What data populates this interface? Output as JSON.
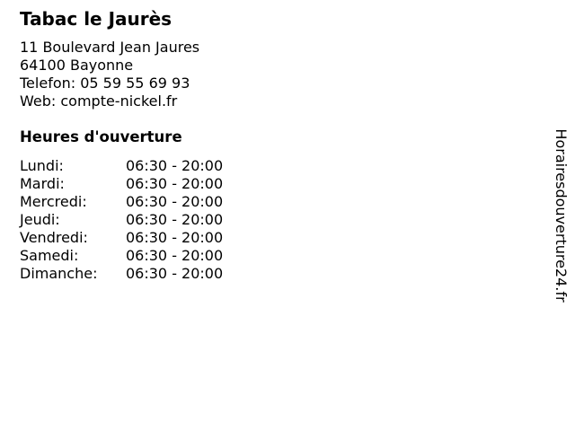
{
  "page": {
    "background_color": "#ffffff",
    "text_color": "#000000"
  },
  "business": {
    "name": "Tabac le Jaurès",
    "address_line1": "11 Boulevard Jean Jaures",
    "address_line2": "64100 Bayonne",
    "phone_line": "Telefon: 05 59 55 69 93",
    "web_line": "Web: compte-nickel.fr"
  },
  "hours": {
    "heading": "Heures d'ouverture",
    "days": [
      {
        "label": "Lundi:",
        "time": "06:30 - 20:00"
      },
      {
        "label": "Mardi:",
        "time": "06:30 - 20:00"
      },
      {
        "label": "Mercredi:",
        "time": "06:30 - 20:00"
      },
      {
        "label": "Jeudi:",
        "time": "06:30 - 20:00"
      },
      {
        "label": "Vendredi:",
        "time": "06:30 - 20:00"
      },
      {
        "label": "Samedi:",
        "time": "06:30 - 20:00"
      },
      {
        "label": "Dimanche:",
        "time": "06:30 - 20:00"
      }
    ]
  },
  "watermark": {
    "text": "Horairesdouverture24.fr"
  }
}
